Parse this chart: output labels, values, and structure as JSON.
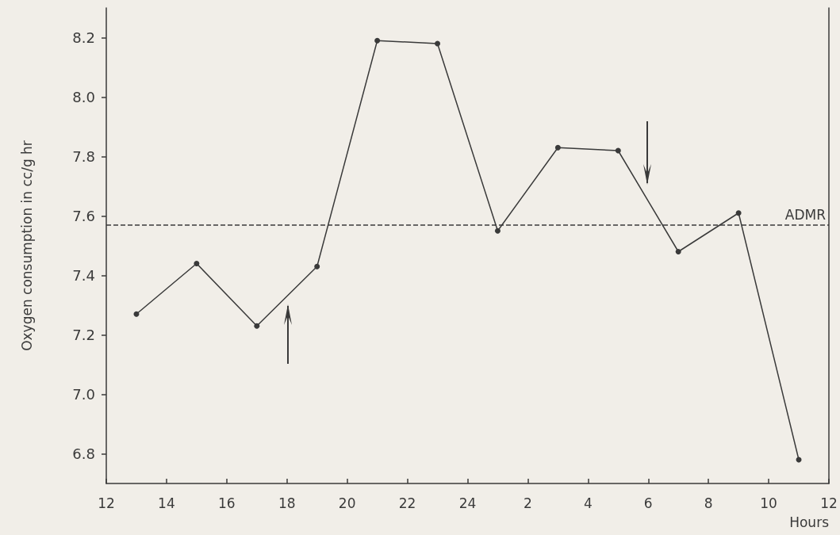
{
  "chart_data": {
    "type": "line",
    "xlabel": "Hours",
    "ylabel": "Oxygen consumption in cc/g hr",
    "categories": [
      "12",
      null,
      "14",
      null,
      "16",
      null,
      "18",
      null,
      "20",
      null,
      "22",
      null,
      "24",
      null,
      "2",
      null,
      "4",
      null,
      "6",
      null,
      "8",
      null,
      "10",
      null,
      "12"
    ],
    "values": [
      null,
      7.27,
      null,
      7.44,
      null,
      7.23,
      null,
      7.43,
      null,
      8.19,
      null,
      8.18,
      null,
      7.55,
      null,
      7.83,
      null,
      7.82,
      null,
      7.48,
      null,
      7.61,
      null,
      6.78,
      null
    ],
    "color": "#3a3a3a",
    "marker": "circle",
    "line_style": "solid",
    "grid": false,
    "ylim": [
      6.7,
      8.3
    ],
    "yticks": [
      {
        "value": 6.8,
        "label": "6.8"
      },
      {
        "value": 7.0,
        "label": "7.0"
      },
      {
        "value": 7.2,
        "label": "7.2"
      },
      {
        "value": 7.4,
        "label": "7.4"
      },
      {
        "value": 7.6,
        "label": "7.6"
      },
      {
        "value": 7.8,
        "label": "7.8"
      },
      {
        "value": 8.0,
        "label": "8.0"
      },
      {
        "value": 8.2,
        "label": "8.2"
      }
    ],
    "ref_lines": [
      {
        "axis": "y",
        "value": 7.57,
        "label": "ADMR",
        "line_style": "dashed",
        "color": "#3a3a3a"
      }
    ]
  }
}
